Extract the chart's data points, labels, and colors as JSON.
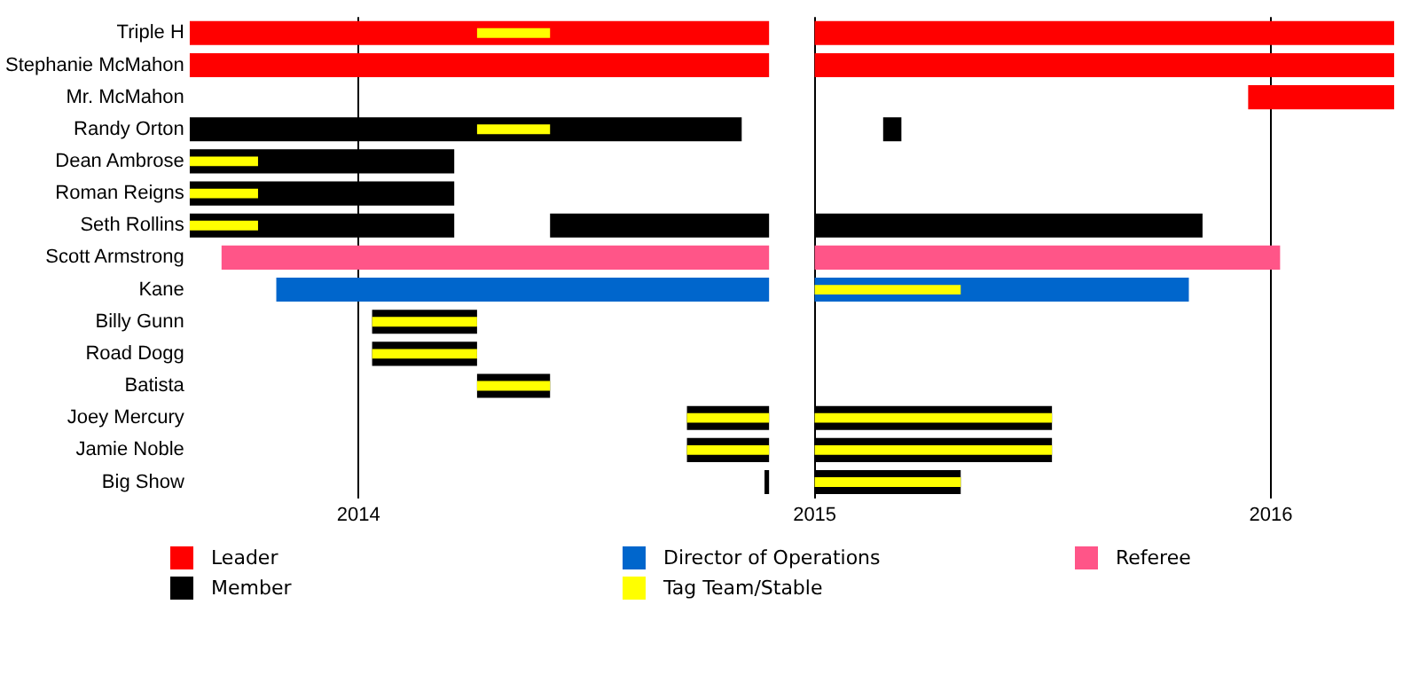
{
  "chart_data": {
    "type": "bar",
    "orientation": "horizontal",
    "categories": [
      "Triple H",
      "Stephanie McMahon",
      "Mr. McMahon",
      "Randy Orton",
      "Dean Ambrose",
      "Roman Reigns",
      "Seth Rollins",
      "Scott Armstrong",
      "Kane",
      "Billy Gunn",
      "Road Dogg",
      "Batista",
      "Joey Mercury",
      "Jamie Noble",
      "Big Show"
    ],
    "series": [
      {
        "name": "Leader",
        "color": "#ff0000",
        "base": [
          2013.63,
          2013.63,
          2015.95,
          null,
          null,
          null,
          null,
          null,
          null,
          null,
          null,
          null,
          null,
          null,
          null
        ],
        "values": [
          1.27,
          1.27,
          0.32,
          null,
          null,
          null,
          null,
          null,
          null,
          null,
          null,
          null,
          null,
          null,
          null
        ]
      },
      {
        "color": "#ff0000",
        "base": [
          2015.0,
          2015.0,
          null,
          null,
          null,
          null,
          null,
          null,
          null,
          null,
          null,
          null,
          null,
          null,
          null
        ],
        "values": [
          1.27,
          1.27,
          null,
          null,
          null,
          null,
          null,
          null,
          null,
          null,
          null,
          null,
          null,
          null,
          null
        ]
      },
      {
        "name": "Director of Operations",
        "color": "#0066cc",
        "base": [
          null,
          null,
          null,
          null,
          null,
          null,
          null,
          null,
          2013.82,
          null,
          null,
          null,
          null,
          null,
          null
        ],
        "values": [
          null,
          null,
          null,
          null,
          null,
          null,
          null,
          null,
          1.08,
          null,
          null,
          null,
          null,
          null,
          null
        ]
      },
      {
        "color": "#0066cc",
        "base": [
          null,
          null,
          null,
          null,
          null,
          null,
          null,
          null,
          2015.0,
          null,
          null,
          null,
          null,
          null,
          null
        ],
        "values": [
          null,
          null,
          null,
          null,
          null,
          null,
          null,
          null,
          0.82,
          null,
          null,
          null,
          null,
          null,
          null
        ]
      },
      {
        "name": "Referee",
        "color": "#ff5588",
        "base": [
          null,
          null,
          null,
          null,
          null,
          null,
          null,
          2013.7,
          null,
          null,
          null,
          null,
          null,
          null,
          null
        ],
        "values": [
          null,
          null,
          null,
          null,
          null,
          null,
          null,
          1.2,
          null,
          null,
          null,
          null,
          null,
          null,
          null
        ]
      },
      {
        "color": "#ff5588",
        "base": [
          null,
          null,
          null,
          null,
          null,
          null,
          null,
          2015.0,
          null,
          null,
          null,
          null,
          null,
          null,
          null
        ],
        "values": [
          null,
          null,
          null,
          null,
          null,
          null,
          null,
          1.02,
          null,
          null,
          null,
          null,
          null,
          null,
          null
        ]
      },
      {
        "name": "Member",
        "color": "#000000",
        "base": [
          null,
          null,
          null,
          2013.63,
          2013.63,
          2013.63,
          2013.63,
          null,
          null,
          2014.03,
          2014.03,
          2014.26,
          2014.72,
          2014.72,
          2014.89
        ],
        "values": [
          null,
          null,
          null,
          1.21,
          0.58,
          0.58,
          0.58,
          null,
          null,
          0.23,
          0.23,
          0.16,
          0.18,
          0.18,
          0.01
        ]
      },
      {
        "color": "#000000",
        "base": [
          null,
          null,
          null,
          2015.15,
          null,
          null,
          2014.42,
          null,
          null,
          null,
          null,
          null,
          2015.0,
          2015.0,
          2015.0
        ],
        "values": [
          null,
          null,
          null,
          0.04,
          null,
          null,
          0.48,
          null,
          null,
          null,
          null,
          null,
          0.52,
          0.52,
          0.32
        ]
      },
      {
        "color": "#000000",
        "base": [
          null,
          null,
          null,
          null,
          null,
          null,
          2015.0,
          null,
          null,
          null,
          null,
          null,
          null,
          null,
          null
        ],
        "values": [
          null,
          null,
          null,
          null,
          null,
          null,
          0.85,
          null,
          null,
          null,
          null,
          null,
          null,
          null,
          null
        ]
      },
      {
        "name": "Tag Team/Stable",
        "color": "#ffff00",
        "base": [
          2014.26,
          null,
          null,
          2014.26,
          2013.63,
          2013.63,
          2013.63,
          null,
          2015.0,
          2014.03,
          2014.03,
          2014.26,
          2014.72,
          2014.72,
          2015.0
        ],
        "values": [
          0.16,
          null,
          null,
          0.16,
          0.15,
          0.15,
          0.15,
          null,
          0.32,
          0.23,
          0.23,
          0.16,
          0.18,
          0.18,
          0.32
        ]
      },
      {
        "color": "#ffff00",
        "base": [
          null,
          null,
          null,
          null,
          null,
          null,
          null,
          null,
          null,
          null,
          null,
          null,
          2015.0,
          2015.0,
          null
        ],
        "values": [
          null,
          null,
          null,
          null,
          null,
          null,
          null,
          null,
          null,
          null,
          null,
          null,
          0.52,
          0.52,
          null
        ]
      }
    ],
    "xlim": [
      2013.63,
      2016.27
    ],
    "xticks": [
      2014,
      2015,
      2016
    ],
    "grid": "x",
    "legend": "bottom"
  }
}
